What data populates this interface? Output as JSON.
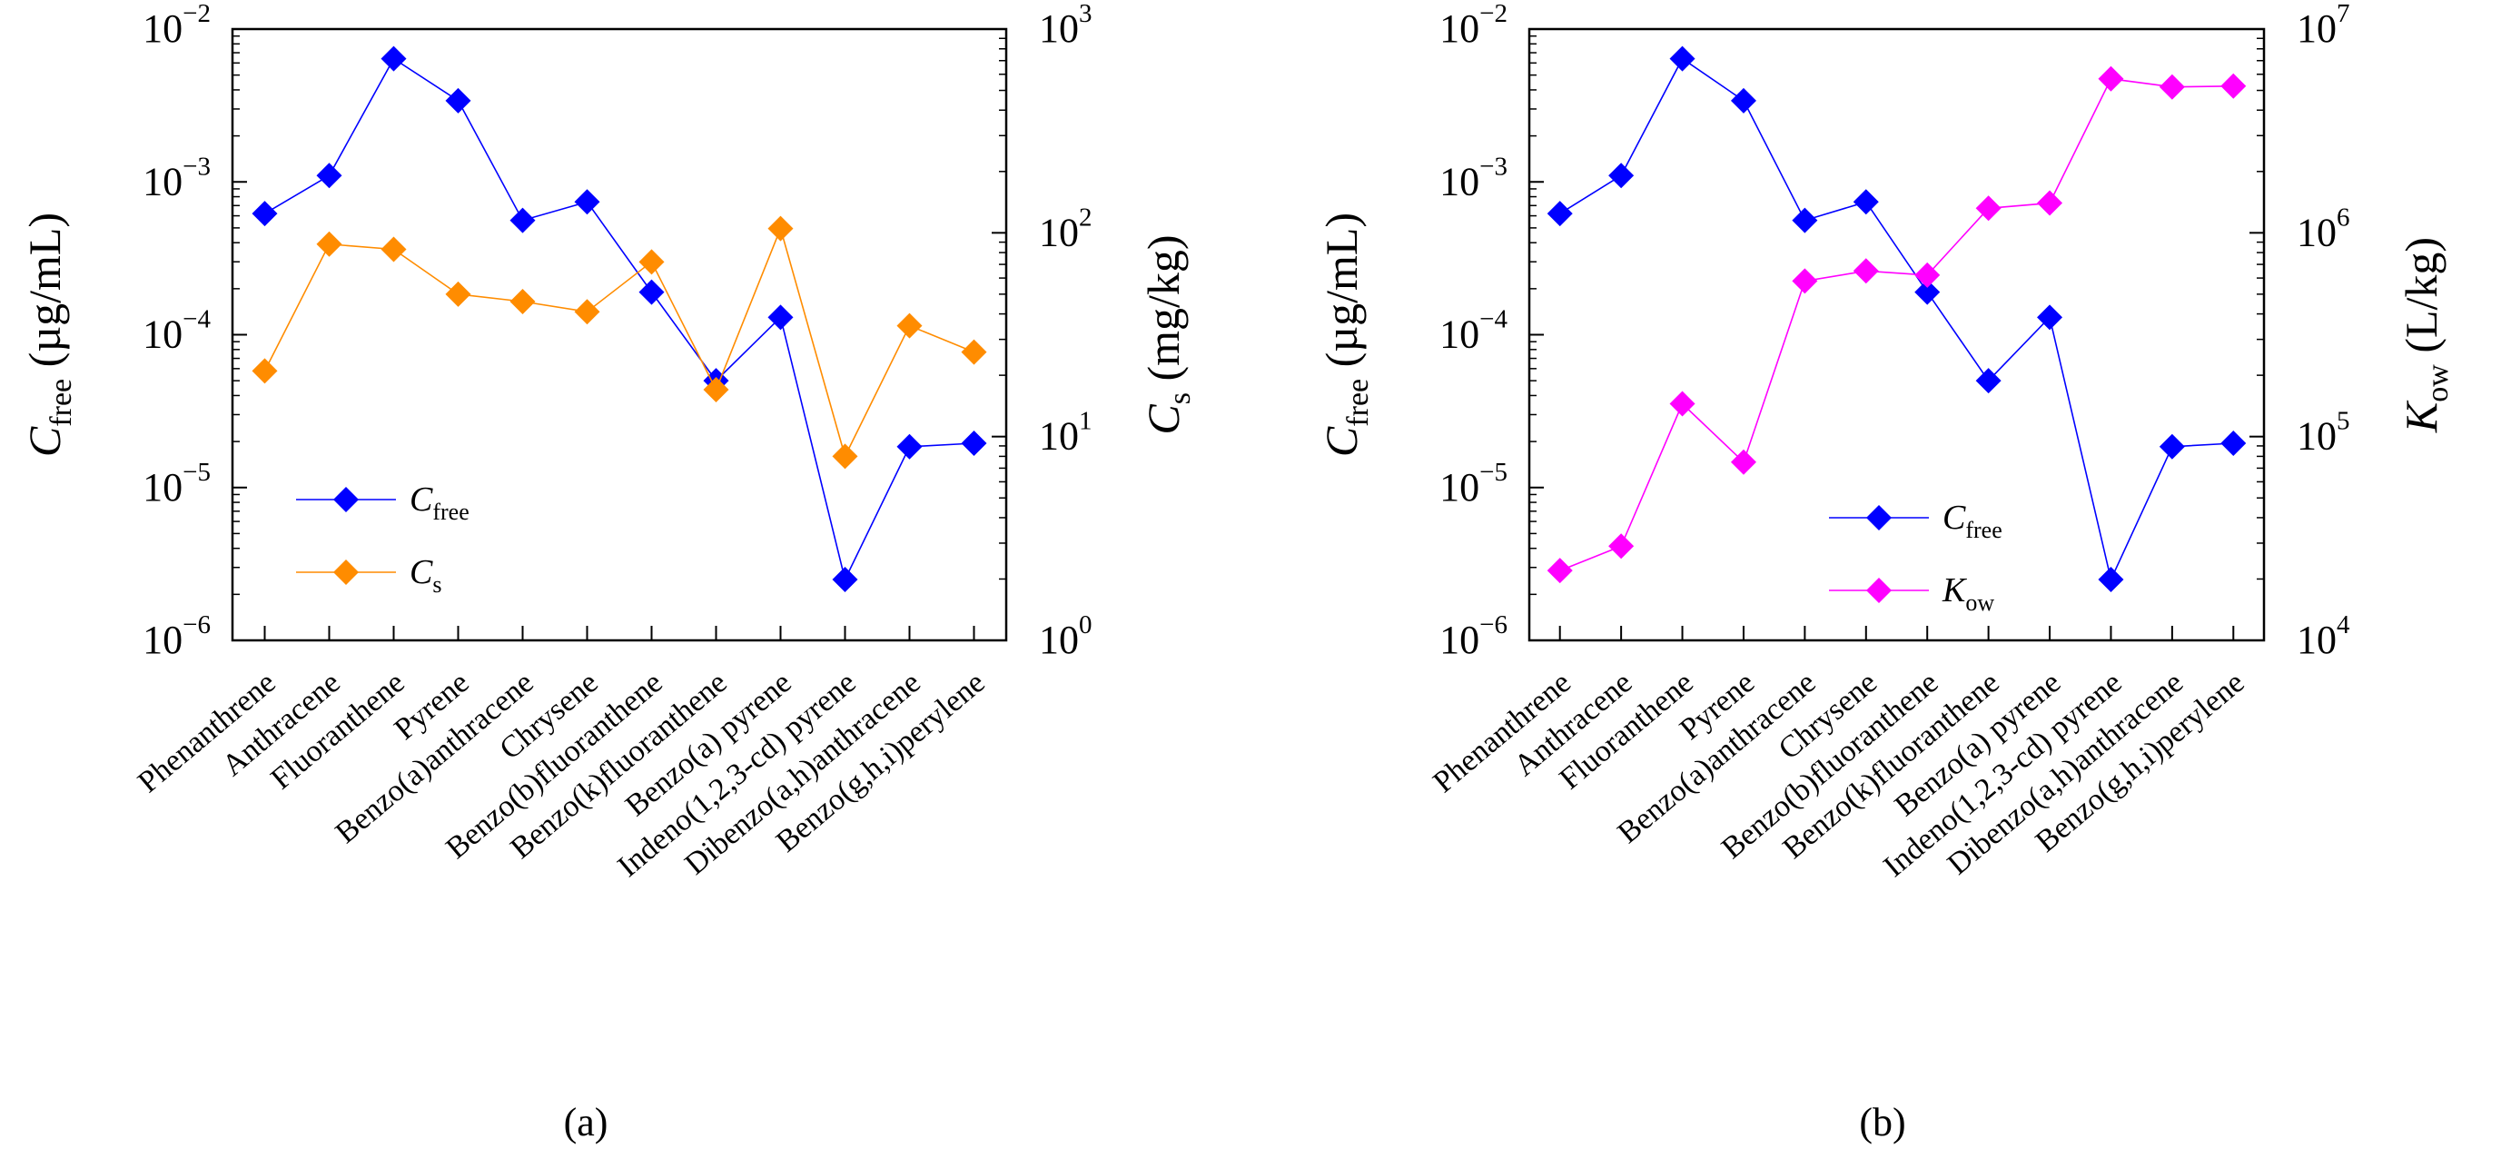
{
  "chart_data": [
    {
      "type": "line",
      "panel_label": "(a)",
      "yscale": "log",
      "y2scale": "log",
      "ylabel": {
        "main": "C",
        "sub": "free",
        "unit": "(µg/mL)"
      },
      "y2label": {
        "main": "C",
        "sub": "s",
        "unit": "(mg/kg)"
      },
      "ylim": [
        1e-06,
        0.01
      ],
      "y2lim": [
        1,
        1000
      ],
      "yticks": [
        {
          "base": "10",
          "exp": "−6"
        },
        {
          "base": "10",
          "exp": "−5"
        },
        {
          "base": "10",
          "exp": "−4"
        },
        {
          "base": "10",
          "exp": "−3"
        },
        {
          "base": "10",
          "exp": "−2"
        }
      ],
      "y2ticks": [
        {
          "base": "10",
          "exp": "0"
        },
        {
          "base": "10",
          "exp": "1"
        },
        {
          "base": "10",
          "exp": "2"
        },
        {
          "base": "10",
          "exp": "3"
        }
      ],
      "categories": [
        "Phenanthrene",
        "Anthracene",
        "Fluoranthene",
        "Pyrene",
        "Benzo(a)anthracene",
        "Chrysene",
        "Benzo(b)fluoranthene",
        "Benzo(k)fluoranthene",
        "Benzo(a) pyrene",
        "Indeno(1,2,3-cd) pyrene",
        "Dibenzo(a,h)anthracene",
        "Benzo(g,h,i)perylene"
      ],
      "series": [
        {
          "name": {
            "main": "C",
            "sub": "free"
          },
          "axis": "left",
          "color": "#0000ff",
          "values": [
            0.00062,
            0.0011,
            0.0064,
            0.0034,
            0.00056,
            0.00074,
            0.00019,
            5e-05,
            0.00013,
            2.5e-06,
            1.85e-05,
            1.95e-05
          ]
        },
        {
          "name": {
            "main": "C",
            "sub": "s"
          },
          "axis": "right",
          "color": "#ff8c00",
          "values": [
            21,
            88,
            83,
            50,
            46,
            41,
            72,
            17,
            105,
            8,
            35,
            26
          ]
        }
      ],
      "legend_position": "lower-left",
      "grid": false
    },
    {
      "type": "line",
      "panel_label": "(b)",
      "yscale": "log",
      "y2scale": "log",
      "ylabel": {
        "main": "C",
        "sub": "free",
        "unit": "(µg/mL)"
      },
      "y2label": {
        "main": "K",
        "sub": "ow",
        "unit": "(L/kg)"
      },
      "ylim": [
        1e-06,
        0.01
      ],
      "y2lim": [
        10000,
        10000000
      ],
      "yticks": [
        {
          "base": "10",
          "exp": "−6"
        },
        {
          "base": "10",
          "exp": "−5"
        },
        {
          "base": "10",
          "exp": "−4"
        },
        {
          "base": "10",
          "exp": "−3"
        },
        {
          "base": "10",
          "exp": "−2"
        }
      ],
      "y2ticks": [
        {
          "base": "10",
          "exp": "4"
        },
        {
          "base": "10",
          "exp": "5"
        },
        {
          "base": "10",
          "exp": "6"
        },
        {
          "base": "10",
          "exp": "7"
        }
      ],
      "categories": [
        "Phenanthrene",
        "Anthracene",
        "Fluoranthene",
        "Pyrene",
        "Benzo(a)anthracene",
        "Chrysene",
        "Benzo(b)fluoranthene",
        "Benzo(k)fluoranthene",
        "Benzo(a) pyrene",
        "Indeno(1,2,3-cd) pyrene",
        "Dibenzo(a,h)anthracene",
        "Benzo(g,h,i)perylene"
      ],
      "series": [
        {
          "name": {
            "main": "C",
            "sub": "free"
          },
          "axis": "left",
          "color": "#0000ff",
          "values": [
            0.00062,
            0.0011,
            0.0064,
            0.0034,
            0.00056,
            0.00074,
            0.00019,
            5e-05,
            0.00013,
            2.5e-06,
            1.85e-05,
            1.95e-05
          ]
        },
        {
          "name": {
            "main": "K",
            "sub": "ow"
          },
          "axis": "right",
          "color": "#ff00ff",
          "values": [
            22000,
            29000,
            145000,
            75000,
            580000,
            650000,
            620000,
            1320000,
            1400000,
            5700000,
            5200000,
            5250000
          ]
        }
      ],
      "legend_position": "lower-right",
      "grid": false
    }
  ]
}
